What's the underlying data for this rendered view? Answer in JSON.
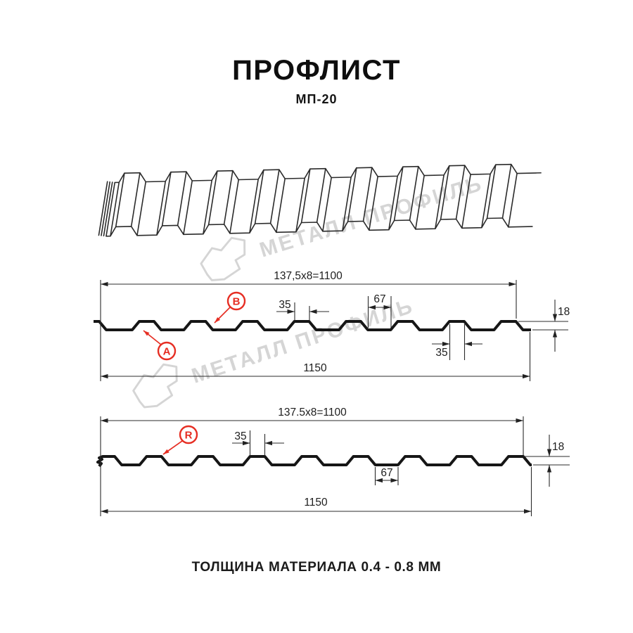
{
  "page": {
    "title": "ПРОФЛИСТ",
    "subtitle": "МП-20",
    "footer": "ТОЛЩИНА МАТЕРИАЛА 0.4 - 0.8 ММ"
  },
  "watermark": {
    "text": "МЕТАЛЛ ПРОФИЛЬ"
  },
  "colors": {
    "accent_red": "#e62e23",
    "line": "#1c1c1c",
    "watermark_gray": "#d5d5d5"
  },
  "diagram_top": {
    "coverage_width": "137,5x8=1100",
    "rib_top_width": "35",
    "valley_width": "67",
    "rib_bottom_width": "35",
    "full_width": "1150",
    "height": "18",
    "label_a": "A",
    "label_b": "B"
  },
  "diagram_bottom": {
    "coverage_width": "137.5x8=1100",
    "rib_top_width": "35",
    "valley_width": "67",
    "full_width": "1150",
    "height": "18",
    "label_r": "R"
  }
}
